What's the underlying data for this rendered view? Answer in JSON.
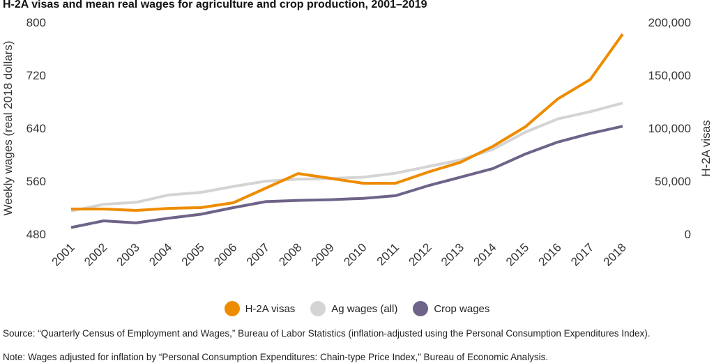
{
  "chart_data": {
    "type": "line",
    "title": "H-2A visas and mean real wages for agriculture and crop production, 2001–2019",
    "x": [
      "2001",
      "2002",
      "2003",
      "2004",
      "2005",
      "2006",
      "2007",
      "2008",
      "2009",
      "2010",
      "2011",
      "2012",
      "2013",
      "2014",
      "2015",
      "2016",
      "2017",
      "2018"
    ],
    "ylabel": "Weekly wages (real 2018 dollars)",
    "y2label": "H-2A visas",
    "ylim": [
      480,
      800
    ],
    "y2lim": [
      0,
      200000
    ],
    "yticks": [
      "480",
      "560",
      "640",
      "720",
      "800"
    ],
    "y2ticks": [
      "0",
      "50,000",
      "100,000",
      "150,000",
      "200,000"
    ],
    "grid": false,
    "legend_position": "bottom",
    "series": [
      {
        "name": "H-2A visas",
        "axis": "right",
        "color": "#EE8C00",
        "values": [
          23700,
          23700,
          22400,
          24300,
          25000,
          29600,
          43400,
          57200,
          52600,
          48000,
          48000,
          58500,
          67800,
          82900,
          101300,
          127600,
          146000,
          188800
        ]
      },
      {
        "name": "Ag wages (all)",
        "axis": "left",
        "color": "#D4D4D4",
        "values": [
          515,
          525,
          528,
          539,
          543,
          552,
          560,
          563,
          564,
          566,
          572,
          582,
          592,
          608,
          634,
          654,
          665,
          678
        ]
      },
      {
        "name": "Crop wages",
        "axis": "left",
        "color": "#6E6388",
        "values": [
          490,
          500,
          497,
          504,
          510,
          520,
          529,
          531,
          532,
          534,
          538,
          553,
          566,
          579,
          601,
          619,
          632,
          643
        ]
      }
    ]
  },
  "source": "Source: “Quarterly Census of Employment and Wages,” Bureau of Labor Statistics (inflation-adjusted using the Personal Consumption Expenditures Index).",
  "note": "Note: Wages adjusted for inflation by “Personal Consumption Expenditures: Chain-type Price Index,” Bureau of Economic Analysis."
}
